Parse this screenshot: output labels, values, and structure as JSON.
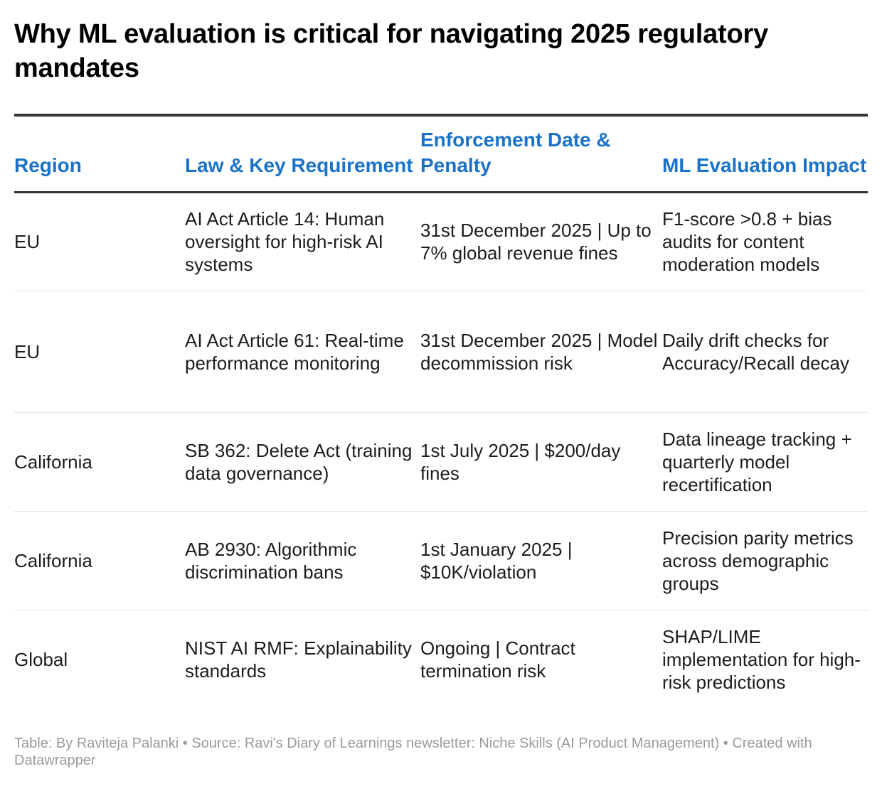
{
  "title": "Why ML evaluation is critical for navigating 2025 regulatory mandates",
  "table": {
    "headers": {
      "region": "Region",
      "law": "Law & Key Requirement",
      "enforcement": "Enforcement Date & Penalty",
      "impact": "ML Evaluation Impact"
    },
    "rows": [
      {
        "region": "EU",
        "law": "AI Act Article 14: Human oversight for high-risk AI systems",
        "enforcement": "31st December 2025 | Up to 7% global revenue fines",
        "impact": "F1-score >0.8 + bias audits for content moderation models"
      },
      {
        "region": "EU",
        "law": "AI Act Article 61: Real-time performance monitoring",
        "enforcement": "31st December 2025 | Model decommission risk",
        "impact": "Daily drift checks for Accuracy/Recall decay"
      },
      {
        "region": "California",
        "law": "SB 362: Delete Act (training data governance)",
        "enforcement": "1st July 2025 | $200/day fines",
        "impact": "Data lineage tracking + quarterly model recertification"
      },
      {
        "region": "California",
        "law": "AB 2930: Algorithmic discrimination bans",
        "enforcement": "1st January 2025 | $10K/violation",
        "impact": "Precision parity metrics across demographic groups"
      },
      {
        "region": "Global",
        "law": "NIST AI RMF: Explainability standards",
        "enforcement": "Ongoing | Contract termination risk",
        "impact": "SHAP/LIME implementation for high-risk predictions"
      }
    ]
  },
  "footer": "Table: By Raviteja Palanki  • Source: Ravi's Diary of Learnings newsletter: Niche Skills (AI Product Management) • Created with Datawrapper",
  "colors": {
    "header_text": "#1a73c8",
    "rule": "#333333",
    "row_divider": "#e5e5e5",
    "footer_text": "#9a9a9a"
  }
}
